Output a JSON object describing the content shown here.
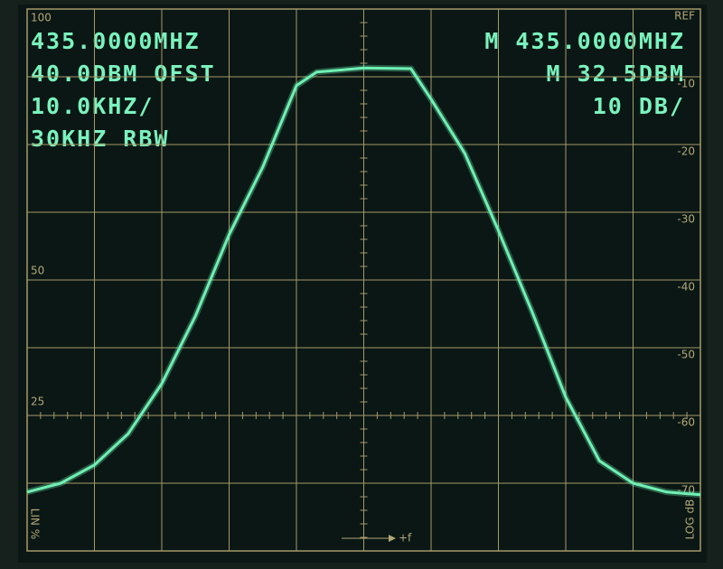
{
  "chart_data": {
    "type": "line",
    "readouts": {
      "center": "435.0000MHZ",
      "offset": "40.0DBM OFST",
      "span": "10.0KHZ/",
      "rbw": "30KHZ RBW",
      "marker_freq": "M 435.0000MHZ",
      "marker_level": "M 32.5DBM",
      "scale": "10 DB/"
    },
    "left_scale": [
      "100",
      "50",
      "25"
    ],
    "lin_label": "LIN %",
    "log_label": "LOG dB",
    "x_label": "+f",
    "xlim": [
      0,
      10
    ],
    "ylim": [
      -80,
      0
    ],
    "yticks": [
      {
        "value": 0,
        "label": "REF"
      },
      -10,
      -20,
      -30,
      -40,
      -50,
      -60,
      -70
    ],
    "grid": true,
    "x": [
      0,
      0.5,
      1,
      1.5,
      2,
      2.5,
      3,
      3.5,
      4,
      4.3,
      5,
      5.7,
      6,
      6.5,
      7,
      7.5,
      8,
      8.5,
      9,
      9.5,
      10
    ],
    "series": [
      {
        "color": "#6ff0b4",
        "values": [
          -71.3,
          -70,
          -67.3,
          -62.7,
          -55.3,
          -45.3,
          -33.3,
          -23.3,
          -11.3,
          -9.3,
          -8.7,
          -8.8,
          -13.3,
          -21.3,
          -32.7,
          -44.7,
          -57.3,
          -66.7,
          -70,
          -71.3,
          -71.7
        ]
      }
    ]
  }
}
